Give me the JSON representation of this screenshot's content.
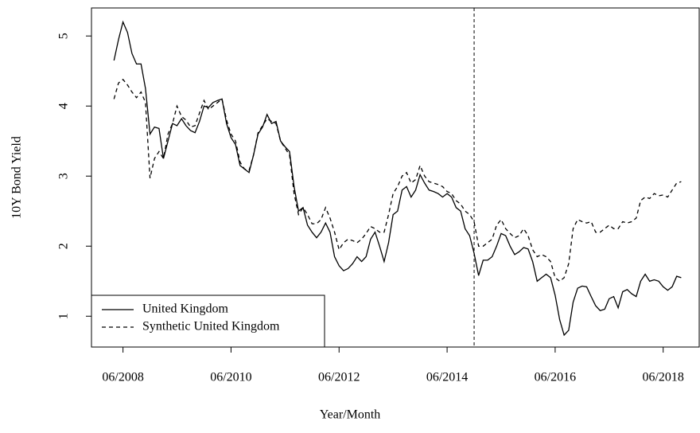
{
  "chart_data": {
    "type": "line",
    "xlabel": "Year/Month",
    "ylabel": "10Y Bond Yield",
    "x": [
      "2008-04",
      "2008-05",
      "2008-06",
      "2008-07",
      "2008-08",
      "2008-09",
      "2008-10",
      "2008-11",
      "2008-12",
      "2009-01",
      "2009-02",
      "2009-03",
      "2009-04",
      "2009-05",
      "2009-06",
      "2009-07",
      "2009-08",
      "2009-09",
      "2009-10",
      "2009-11",
      "2009-12",
      "2010-01",
      "2010-02",
      "2010-03",
      "2010-04",
      "2010-05",
      "2010-06",
      "2010-07",
      "2010-08",
      "2010-09",
      "2010-10",
      "2010-11",
      "2010-12",
      "2011-01",
      "2011-02",
      "2011-03",
      "2011-04",
      "2011-05",
      "2011-06",
      "2011-07",
      "2011-08",
      "2011-09",
      "2011-10",
      "2011-11",
      "2011-12",
      "2012-01",
      "2012-02",
      "2012-03",
      "2012-04",
      "2012-05",
      "2012-06",
      "2012-07",
      "2012-08",
      "2012-09",
      "2012-10",
      "2012-11",
      "2012-12",
      "2013-01",
      "2013-02",
      "2013-03",
      "2013-04",
      "2013-05",
      "2013-06",
      "2013-07",
      "2013-08",
      "2013-09",
      "2013-10",
      "2013-11",
      "2013-12",
      "2014-01",
      "2014-02",
      "2014-03",
      "2014-04",
      "2014-05",
      "2014-06",
      "2014-07",
      "2014-08",
      "2014-09",
      "2014-10",
      "2014-11",
      "2014-12",
      "2015-01",
      "2015-02",
      "2015-03",
      "2015-04",
      "2015-05",
      "2015-06",
      "2015-07",
      "2015-08",
      "2015-09",
      "2015-10",
      "2015-11",
      "2015-12",
      "2016-01",
      "2016-02",
      "2016-03",
      "2016-04",
      "2016-05",
      "2016-06",
      "2016-07",
      "2016-08",
      "2016-09",
      "2016-10",
      "2016-11",
      "2016-12",
      "2017-01",
      "2017-02",
      "2017-03",
      "2017-04",
      "2017-05",
      "2017-06",
      "2017-07",
      "2017-08",
      "2017-09",
      "2017-10",
      "2017-11",
      "2017-12",
      "2018-01",
      "2018-02",
      "2018-03",
      "2018-04",
      "2018-05",
      "2018-06",
      "2018-07",
      "2018-08",
      "2018-09",
      "2018-10"
    ],
    "series": [
      {
        "name": "United Kingdom",
        "color": "#000000",
        "dash": "solid",
        "values": [
          4.65,
          4.95,
          5.2,
          5.05,
          4.75,
          4.6,
          4.6,
          4.25,
          3.6,
          3.7,
          3.68,
          3.25,
          3.5,
          3.75,
          3.72,
          3.82,
          3.72,
          3.65,
          3.62,
          3.78,
          4.0,
          3.98,
          4.05,
          4.08,
          4.1,
          3.75,
          3.55,
          3.45,
          3.15,
          3.1,
          3.05,
          3.3,
          3.6,
          3.7,
          3.88,
          3.75,
          3.78,
          3.5,
          3.42,
          3.35,
          2.85,
          2.5,
          2.55,
          2.3,
          2.2,
          2.12,
          2.2,
          2.33,
          2.2,
          1.85,
          1.72,
          1.65,
          1.68,
          1.75,
          1.85,
          1.78,
          1.85,
          2.1,
          2.2,
          2.0,
          1.78,
          2.05,
          2.45,
          2.5,
          2.8,
          2.85,
          2.7,
          2.8,
          3.02,
          2.9,
          2.8,
          2.78,
          2.75,
          2.7,
          2.75,
          2.7,
          2.55,
          2.5,
          2.25,
          2.15,
          1.9,
          1.58,
          1.8,
          1.8,
          1.85,
          2.0,
          2.18,
          2.15,
          2.0,
          1.88,
          1.92,
          1.98,
          1.96,
          1.78,
          1.5,
          1.55,
          1.6,
          1.55,
          1.3,
          0.95,
          0.73,
          0.8,
          1.2,
          1.4,
          1.43,
          1.42,
          1.28,
          1.15,
          1.08,
          1.1,
          1.25,
          1.28,
          1.12,
          1.35,
          1.38,
          1.32,
          1.28,
          1.5,
          1.6,
          1.5,
          1.52,
          1.5,
          1.42,
          1.37,
          1.42,
          1.57,
          1.55
        ]
      },
      {
        "name": "Synthetic United Kingdom",
        "color": "#000000",
        "dash": "dashed",
        "values": [
          4.1,
          4.33,
          4.38,
          4.3,
          4.2,
          4.12,
          4.2,
          4.05,
          2.97,
          3.25,
          3.35,
          3.25,
          3.6,
          3.75,
          4.0,
          3.85,
          3.8,
          3.7,
          3.72,
          3.9,
          4.08,
          3.95,
          4.0,
          4.05,
          4.1,
          3.8,
          3.6,
          3.5,
          3.2,
          3.1,
          3.08,
          3.3,
          3.62,
          3.72,
          3.82,
          3.78,
          3.75,
          3.5,
          3.4,
          3.3,
          2.75,
          2.45,
          2.55,
          2.45,
          2.32,
          2.32,
          2.38,
          2.55,
          2.4,
          2.2,
          1.95,
          2.05,
          2.1,
          2.08,
          2.05,
          2.1,
          2.18,
          2.28,
          2.25,
          2.2,
          2.2,
          2.45,
          2.75,
          2.85,
          3.0,
          3.05,
          2.9,
          2.95,
          3.15,
          3.0,
          2.92,
          2.9,
          2.88,
          2.85,
          2.78,
          2.75,
          2.65,
          2.6,
          2.5,
          2.45,
          2.35,
          2.0,
          2.0,
          2.05,
          2.1,
          2.3,
          2.38,
          2.25,
          2.18,
          2.12,
          2.15,
          2.25,
          2.15,
          1.95,
          1.85,
          1.88,
          1.85,
          1.78,
          1.55,
          1.5,
          1.55,
          1.75,
          2.25,
          2.38,
          2.35,
          2.33,
          2.35,
          2.2,
          2.2,
          2.25,
          2.3,
          2.25,
          2.25,
          2.35,
          2.33,
          2.35,
          2.4,
          2.65,
          2.7,
          2.68,
          2.75,
          2.72,
          2.73,
          2.7,
          2.8,
          2.9,
          2.92
        ]
      }
    ],
    "vline": "2014-12",
    "xlim": [
      "2007-11",
      "2019-02"
    ],
    "xticks": [
      {
        "value": "2008-06",
        "label": "06/2008"
      },
      {
        "value": "2010-06",
        "label": "06/2010"
      },
      {
        "value": "2012-06",
        "label": "06/2012"
      },
      {
        "value": "2014-06",
        "label": "06/2014"
      },
      {
        "value": "2016-06",
        "label": "06/2016"
      },
      {
        "value": "2018-06",
        "label": "06/2018"
      }
    ],
    "ylim": [
      0.56,
      5.4
    ],
    "yticks": [
      1,
      2,
      3,
      4,
      5
    ],
    "legend": "bottomleft",
    "grid": false
  }
}
